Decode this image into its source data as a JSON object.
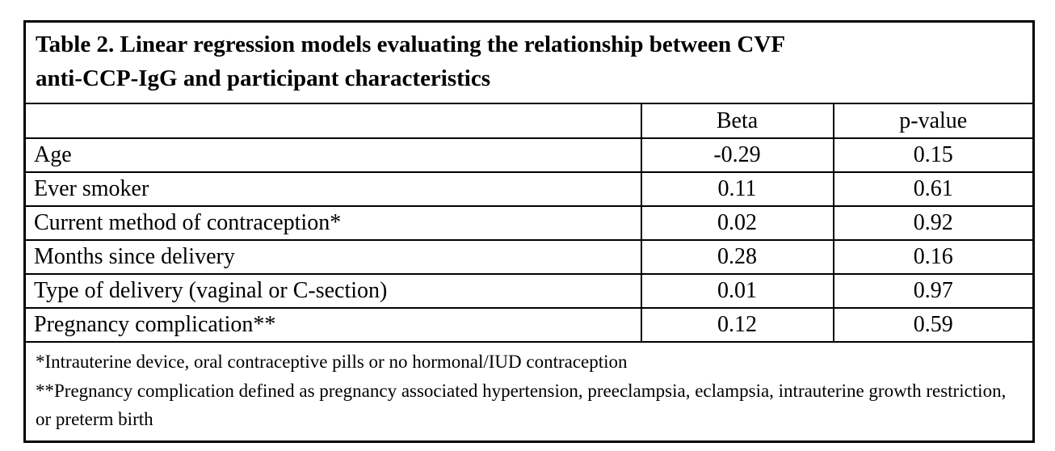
{
  "table": {
    "title_full": "Table 2. Linear regression models evaluating the relationship between CVF anti-CCP-IgG and participant characteristics",
    "title_lines": [
      "Table 2. Linear regression models evaluating the relationship between CVF",
      "anti-CCP-IgG and participant characteristics"
    ],
    "columns": {
      "label": "",
      "beta": "Beta",
      "p_value": "p-value"
    },
    "rows": [
      {
        "label": "Age",
        "beta": "-0.29",
        "p_value": "0.15"
      },
      {
        "label": "Ever smoker",
        "beta": "0.11",
        "p_value": "0.61"
      },
      {
        "label": "Current method of contraception*",
        "beta": "0.02",
        "p_value": "0.92"
      },
      {
        "label": "Months since delivery",
        "beta": "0.28",
        "p_value": "0.16"
      },
      {
        "label": "Type of delivery (vaginal or C-section)",
        "beta": "0.01",
        "p_value": "0.97"
      },
      {
        "label": "Pregnancy complication**",
        "beta": "0.12",
        "p_value": "0.59"
      }
    ],
    "footnotes": [
      "*Intrauterine device, oral contraceptive pills or no hormonal/IUD contraception",
      "**Pregnancy complication defined as pregnancy associated hypertension, preeclampsia, eclampsia, intrauterine growth restriction, or preterm birth"
    ],
    "colors": {
      "border": "#000000",
      "text": "#000000",
      "background": "#ffffff"
    }
  }
}
